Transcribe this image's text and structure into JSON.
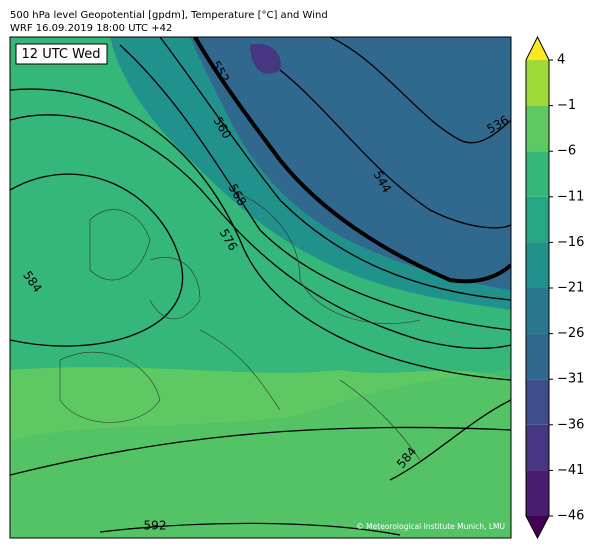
{
  "header": {
    "title_line1": "500 hPa level Geopotential [gpdm], Temperature [°C] and Wind",
    "title_line2": "WRF 16.09.2019 18:00 UTC +42"
  },
  "map": {
    "time_label": "12 UTC Wed",
    "contour_labels": [
      552,
      560,
      568,
      576,
      584,
      544,
      536,
      592,
      584
    ],
    "credit": "© Meteorological Institute Munich, LMU"
  },
  "colorbar": {
    "lim": [
      -46,
      4
    ],
    "ticks": [
      {
        "value": -46,
        "label": "−46"
      },
      {
        "value": -41,
        "label": "−41"
      },
      {
        "value": -36,
        "label": "−36"
      },
      {
        "value": -31,
        "label": "−31"
      },
      {
        "value": -26,
        "label": "−26"
      },
      {
        "value": -21,
        "label": "−21"
      },
      {
        "value": -16,
        "label": "−16"
      },
      {
        "value": -11,
        "label": "−11"
      },
      {
        "value": -6,
        "label": "−6"
      },
      {
        "value": -1,
        "label": "−1"
      },
      4
    ],
    "colors": [
      "#440154",
      "#481c6e",
      "#453781",
      "#3d4e8a",
      "#31688e",
      "#2a788e",
      "#21918c",
      "#26a784",
      "#35b779",
      "#5ec962",
      "#a0da39",
      "#fde725"
    ]
  }
}
